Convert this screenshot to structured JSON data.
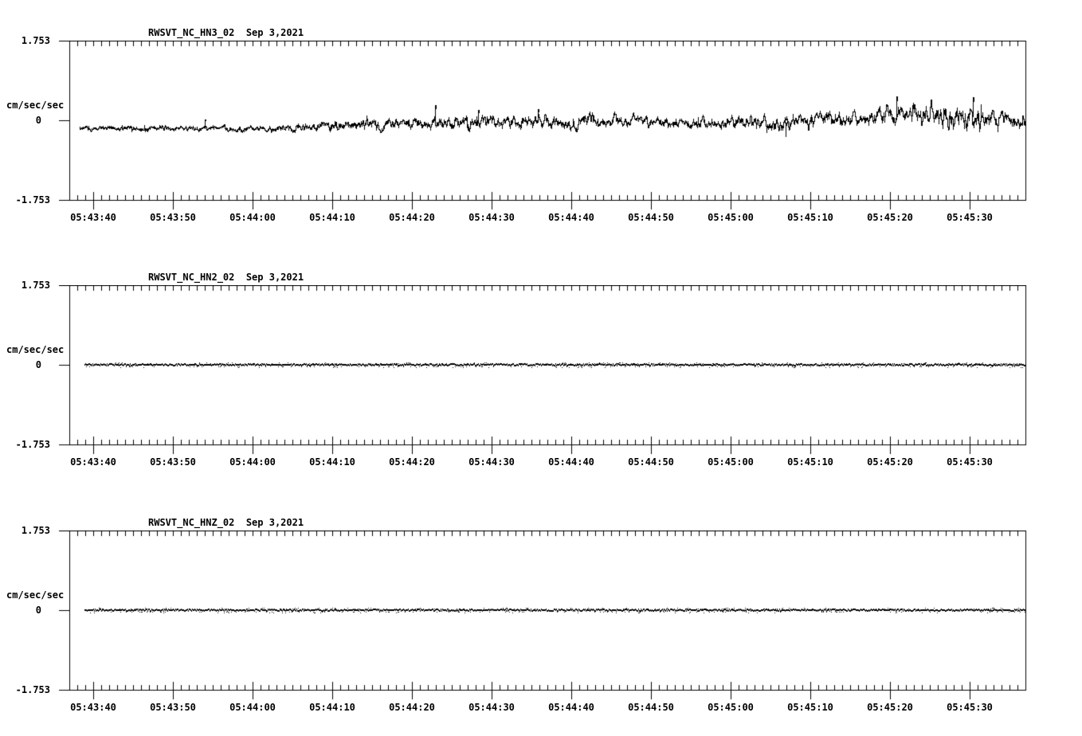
{
  "page": {
    "background": "#ffffff",
    "ink": "#000000"
  },
  "chart_data": [
    {
      "type": "line",
      "chart_kind": "seismogram",
      "title": "RWSVT_NC_HN3_02  Sep 3,2021",
      "station_channel": "RWSVT_NC_HN3_02",
      "date": "Sep 3,2021",
      "ylabel": "cm/sec/sec",
      "ylim": [
        -1.753,
        1.753
      ],
      "yticks": [
        "1.753",
        "0",
        "-1.753"
      ],
      "xticklabels": [
        "05:43:40",
        "05:43:50",
        "05:44:00",
        "05:44:10",
        "05:44:20",
        "05:44:30",
        "05:44:40",
        "05:44:50",
        "05:45:00",
        "05:45:10",
        "05:45:20",
        "05:45:30"
      ],
      "x_major_step_sec": 10,
      "x_minor_step_sec": 1,
      "grid": false,
      "legend": "none",
      "series": {
        "name": "HN3",
        "style": "noisy",
        "seed": 20210903,
        "envelope": [
          [
            0.0,
            -0.17,
            0.055
          ],
          [
            0.126,
            -0.18,
            0.055
          ],
          [
            0.219,
            -0.17,
            0.07
          ],
          [
            0.286,
            -0.09,
            0.12
          ],
          [
            0.354,
            -0.07,
            0.11
          ],
          [
            0.404,
            -0.05,
            0.14
          ],
          [
            0.471,
            -0.03,
            0.13
          ],
          [
            0.522,
            -0.04,
            0.15
          ],
          [
            0.581,
            -0.03,
            0.11
          ],
          [
            0.64,
            -0.05,
            0.1
          ],
          [
            0.699,
            -0.03,
            0.12
          ],
          [
            0.749,
            -0.06,
            0.15
          ],
          [
            0.791,
            0.0,
            0.15
          ],
          [
            0.842,
            0.09,
            0.17
          ],
          [
            0.892,
            0.13,
            0.21
          ],
          [
            0.943,
            0.09,
            0.25
          ],
          [
            0.978,
            0.02,
            0.19
          ],
          [
            1.0,
            -0.05,
            0.14
          ]
        ],
        "spikes": [
          [
            0.132,
            0.01
          ],
          [
            0.376,
            0.33
          ],
          [
            0.422,
            0.22
          ],
          [
            0.485,
            0.25
          ],
          [
            0.747,
            -0.35
          ],
          [
            0.864,
            0.52
          ],
          [
            0.945,
            0.5
          ]
        ]
      }
    },
    {
      "type": "line",
      "chart_kind": "seismogram",
      "title": "RWSVT_NC_HN2_02  Sep 3,2021",
      "station_channel": "RWSVT_NC_HN2_02",
      "date": "Sep 3,2021",
      "ylabel": "cm/sec/sec",
      "ylim": [
        -1.753,
        1.753
      ],
      "yticks": [
        "1.753",
        "0",
        "-1.753"
      ],
      "xticklabels": [
        "05:43:40",
        "05:43:50",
        "05:44:00",
        "05:44:10",
        "05:44:20",
        "05:44:30",
        "05:44:40",
        "05:44:50",
        "05:45:00",
        "05:45:10",
        "05:45:20",
        "05:45:30"
      ],
      "x_major_step_sec": 10,
      "x_minor_step_sec": 1,
      "grid": false,
      "legend": "none",
      "series": {
        "name": "HN2",
        "style": "flat",
        "seed": 54321,
        "envelope": [
          [
            0.0,
            0.0,
            0.02
          ],
          [
            1.0,
            0.0,
            0.02
          ]
        ],
        "spikes": []
      }
    },
    {
      "type": "line",
      "chart_kind": "seismogram",
      "title": "RWSVT_NC_HNZ_02  Sep 3,2021",
      "station_channel": "RWSVT_NC_HNZ_02",
      "date": "Sep 3,2021",
      "ylabel": "cm/sec/sec",
      "ylim": [
        -1.753,
        1.753
      ],
      "yticks": [
        "1.753",
        "0",
        "-1.753"
      ],
      "xticklabels": [
        "05:43:40",
        "05:43:50",
        "05:44:00",
        "05:44:10",
        "05:44:20",
        "05:44:30",
        "05:44:40",
        "05:44:50",
        "05:45:00",
        "05:45:10",
        "05:45:20",
        "05:45:30"
      ],
      "x_major_step_sec": 10,
      "x_minor_step_sec": 1,
      "grid": false,
      "legend": "none",
      "series": {
        "name": "HNZ",
        "style": "flat",
        "seed": 98765,
        "envelope": [
          [
            0.0,
            0.0,
            0.018
          ],
          [
            1.0,
            0.0,
            0.018
          ]
        ],
        "spikes": []
      }
    }
  ]
}
